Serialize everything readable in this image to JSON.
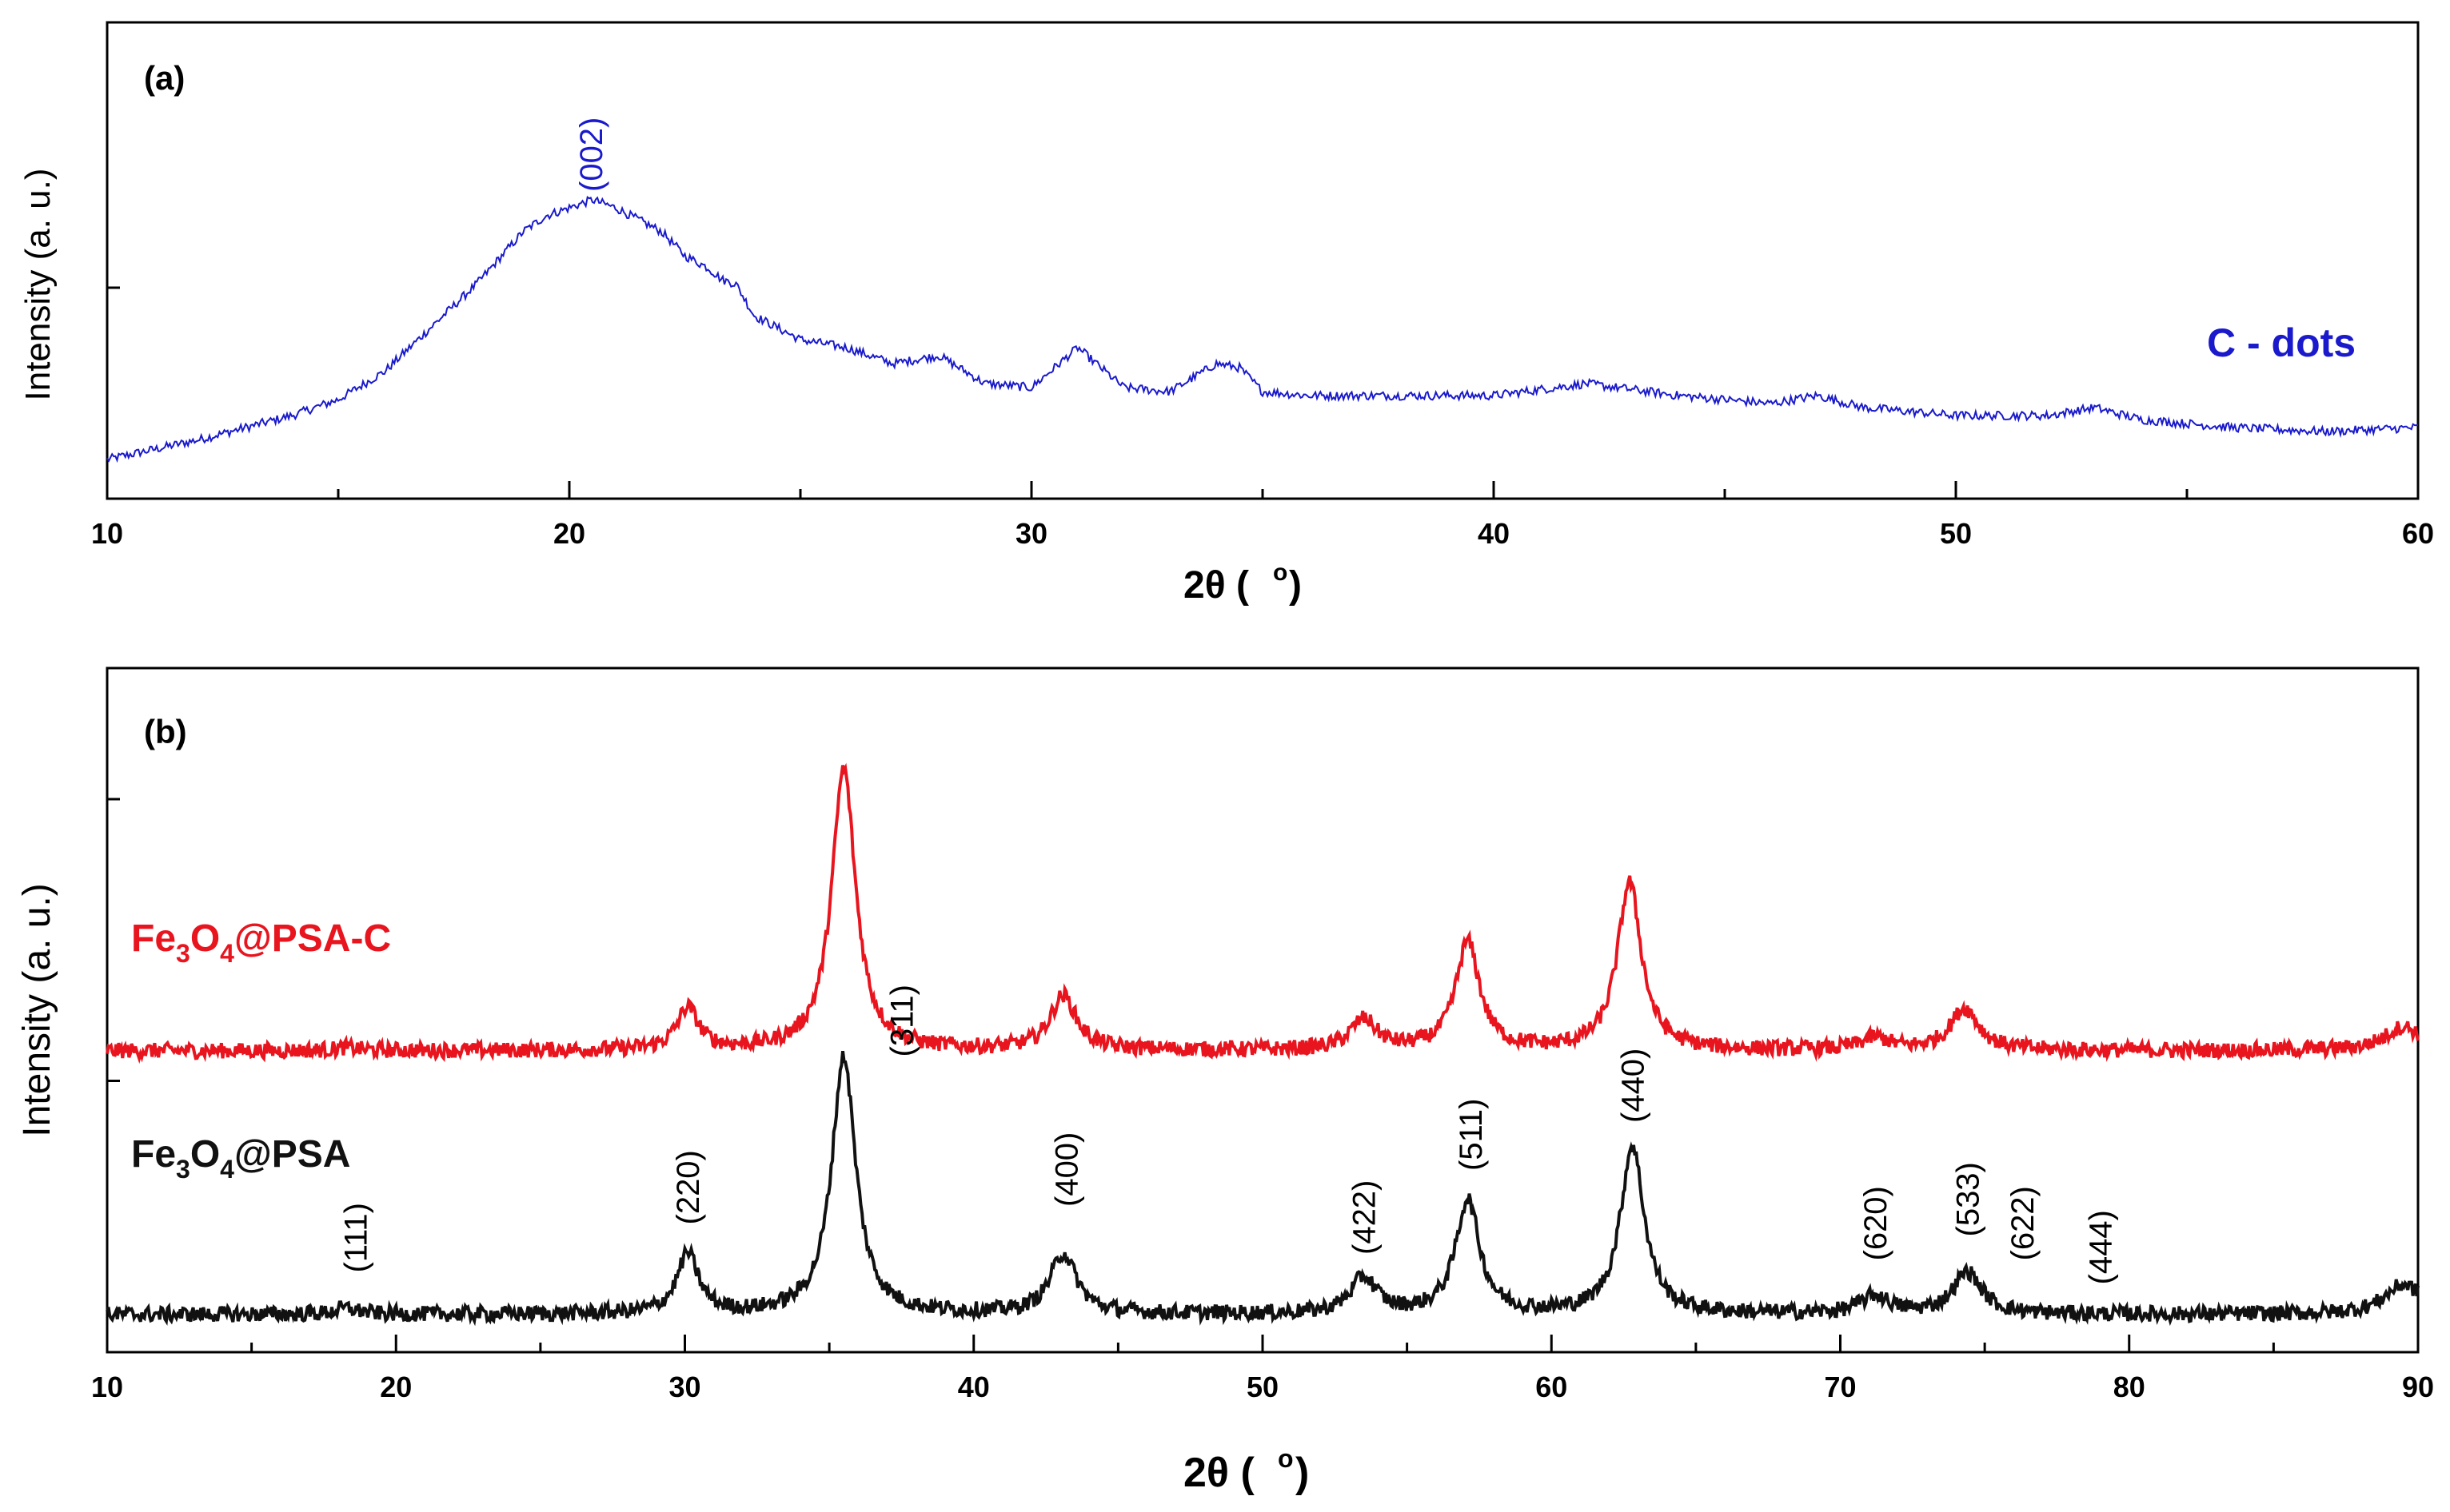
{
  "figure_type": "XRD patterns",
  "chart_data": [
    {
      "panel": "(a)",
      "type": "line",
      "xlabel": "2θ (°)",
      "ylabel": "Intensity (a. u.)",
      "xlim": [
        10,
        60
      ],
      "xticks": [
        10,
        20,
        30,
        40,
        50,
        60
      ],
      "xtick_labels": [
        "10",
        "20",
        "30",
        "40",
        "50",
        "60"
      ],
      "ylim": [
        0,
        100
      ],
      "y_tick_values": [
        52
      ],
      "legend": "C - dots",
      "series": [
        {
          "name": "C - dots",
          "color": "#1a1acc",
          "x": [
            10,
            12,
            14,
            15,
            16,
            17,
            18,
            19,
            19.5,
            20,
            20.5,
            21,
            21.5,
            22,
            22.5,
            23,
            23.3,
            23.6,
            24,
            25,
            26,
            27,
            28,
            29,
            30,
            31,
            31.3,
            32,
            33,
            34,
            34.5,
            35,
            36,
            38,
            40,
            42,
            44,
            46,
            47,
            48,
            50,
            52,
            53,
            54,
            56,
            58,
            60
          ],
          "y": [
            9,
            14,
            20,
            24,
            31,
            42,
            53,
            66,
            70,
            72,
            74,
            72,
            69,
            66,
            60,
            57,
            54,
            53,
            45,
            39,
            37,
            33,
            35,
            28,
            27,
            37,
            34,
            27,
            26,
            33,
            32,
            26,
            25,
            25,
            25,
            28,
            25,
            23,
            25,
            22,
            20,
            20,
            22,
            19,
            17,
            16,
            17
          ]
        }
      ],
      "annotations": [
        {
          "text": "(002)",
          "x": 20.5,
          "y": 76,
          "color": "#1a1acc"
        }
      ]
    },
    {
      "panel": "(b)",
      "type": "line",
      "xlabel": "2θ (°)",
      "ylabel": "Intensity (a. u.)",
      "xlim": [
        10,
        90
      ],
      "xticks": [
        10,
        20,
        30,
        40,
        50,
        60,
        70,
        80,
        90
      ],
      "xtick_labels": [
        "10",
        "20",
        "30",
        "40",
        "50",
        "60",
        "70",
        "80",
        "90"
      ],
      "ylim": [
        0,
        100
      ],
      "y_tick_values": [
        45,
        92
      ],
      "series": [
        {
          "name": "Fe3O4@PSA-C",
          "label_parts": [
            "Fe",
            "3",
            "O",
            "4",
            "@PSA-C"
          ],
          "color": "#e8141e",
          "baseline": 50,
          "peaks": [
            [
              18.3,
              0.5,
              0.5
            ],
            [
              30.1,
              7,
              0.45
            ],
            [
              35.5,
              47,
              0.5
            ],
            [
              43.1,
              9,
              0.55
            ],
            [
              53.5,
              5,
              0.55
            ],
            [
              57.1,
              18,
              0.5
            ],
            [
              62.7,
              28,
              0.5
            ],
            [
              71.2,
              2,
              0.6
            ],
            [
              74.3,
              7,
              0.6
            ],
            [
              89.5,
              4,
              0.8
            ]
          ]
        },
        {
          "name": "Fe3O4@PSA",
          "label_parts": [
            "Fe",
            "3",
            "O",
            "4",
            "@PSA"
          ],
          "color": "#111111",
          "baseline": 6,
          "peaks": [
            [
              18.3,
              1,
              0.5
            ],
            [
              30.1,
              10,
              0.45
            ],
            [
              35.5,
              43,
              0.5
            ],
            [
              43.1,
              10,
              0.55
            ],
            [
              53.5,
              6,
              0.55
            ],
            [
              57.1,
              19,
              0.5
            ],
            [
              62.8,
              28,
              0.5
            ],
            [
              71.2,
              3,
              0.6
            ],
            [
              74.4,
              7,
              0.6
            ],
            [
              89.5,
              5,
              0.8
            ]
          ]
        }
      ],
      "annotations": [
        {
          "text": "(111)",
          "x": 18.6,
          "y": 13
        },
        {
          "text": "(220)",
          "x": 30.1,
          "y": 21
        },
        {
          "text": "(311)",
          "x": 37.5,
          "y": 49
        },
        {
          "text": "(400)",
          "x": 43.2,
          "y": 24
        },
        {
          "text": "(422)",
          "x": 53.5,
          "y": 16
        },
        {
          "text": "(511)",
          "x": 57.2,
          "y": 30
        },
        {
          "text": "(440)",
          "x": 62.8,
          "y": 38
        },
        {
          "text": "(620)",
          "x": 71.2,
          "y": 15
        },
        {
          "text": "(533)",
          "x": 74.4,
          "y": 19
        },
        {
          "text": "(622)",
          "x": 76.3,
          "y": 15
        },
        {
          "text": "(444)",
          "x": 79.0,
          "y": 11
        }
      ]
    }
  ]
}
